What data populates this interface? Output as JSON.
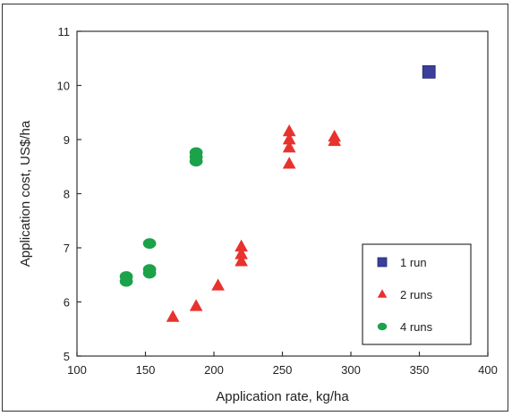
{
  "chart_data": {
    "type": "scatter",
    "xlabel": "Application rate, kg/ha",
    "ylabel": "Application cost, US$/ha",
    "xlim": [
      100,
      400
    ],
    "ylim": [
      5,
      11
    ],
    "xticks": [
      "100",
      "150",
      "200",
      "250",
      "300",
      "350",
      "400"
    ],
    "yticks": [
      "5",
      "6",
      "7",
      "8",
      "9",
      "10",
      "11"
    ],
    "grid": false,
    "legend_position": "bottom-right",
    "series": [
      {
        "name": "1 run",
        "marker": "square",
        "color": "#3a3f9a",
        "points": [
          [
            357,
            10.25
          ]
        ]
      },
      {
        "name": "2 runs",
        "marker": "triangle",
        "color": "#e8322d",
        "points": [
          [
            170,
            5.72
          ],
          [
            187,
            5.92
          ],
          [
            203,
            6.3
          ],
          [
            220,
            6.75
          ],
          [
            220,
            6.88
          ],
          [
            220,
            7.02
          ],
          [
            255,
            8.55
          ],
          [
            255,
            8.85
          ],
          [
            255,
            9.0
          ],
          [
            255,
            9.15
          ],
          [
            288,
            8.97
          ],
          [
            288,
            9.05
          ]
        ]
      },
      {
        "name": "4 runs",
        "marker": "circle",
        "color": "#1ca24a",
        "points": [
          [
            136,
            6.38
          ],
          [
            136,
            6.47
          ],
          [
            153,
            6.53
          ],
          [
            153,
            6.6
          ],
          [
            153,
            7.08
          ],
          [
            187,
            8.6
          ],
          [
            187,
            8.68
          ],
          [
            187,
            8.76
          ]
        ]
      }
    ]
  }
}
